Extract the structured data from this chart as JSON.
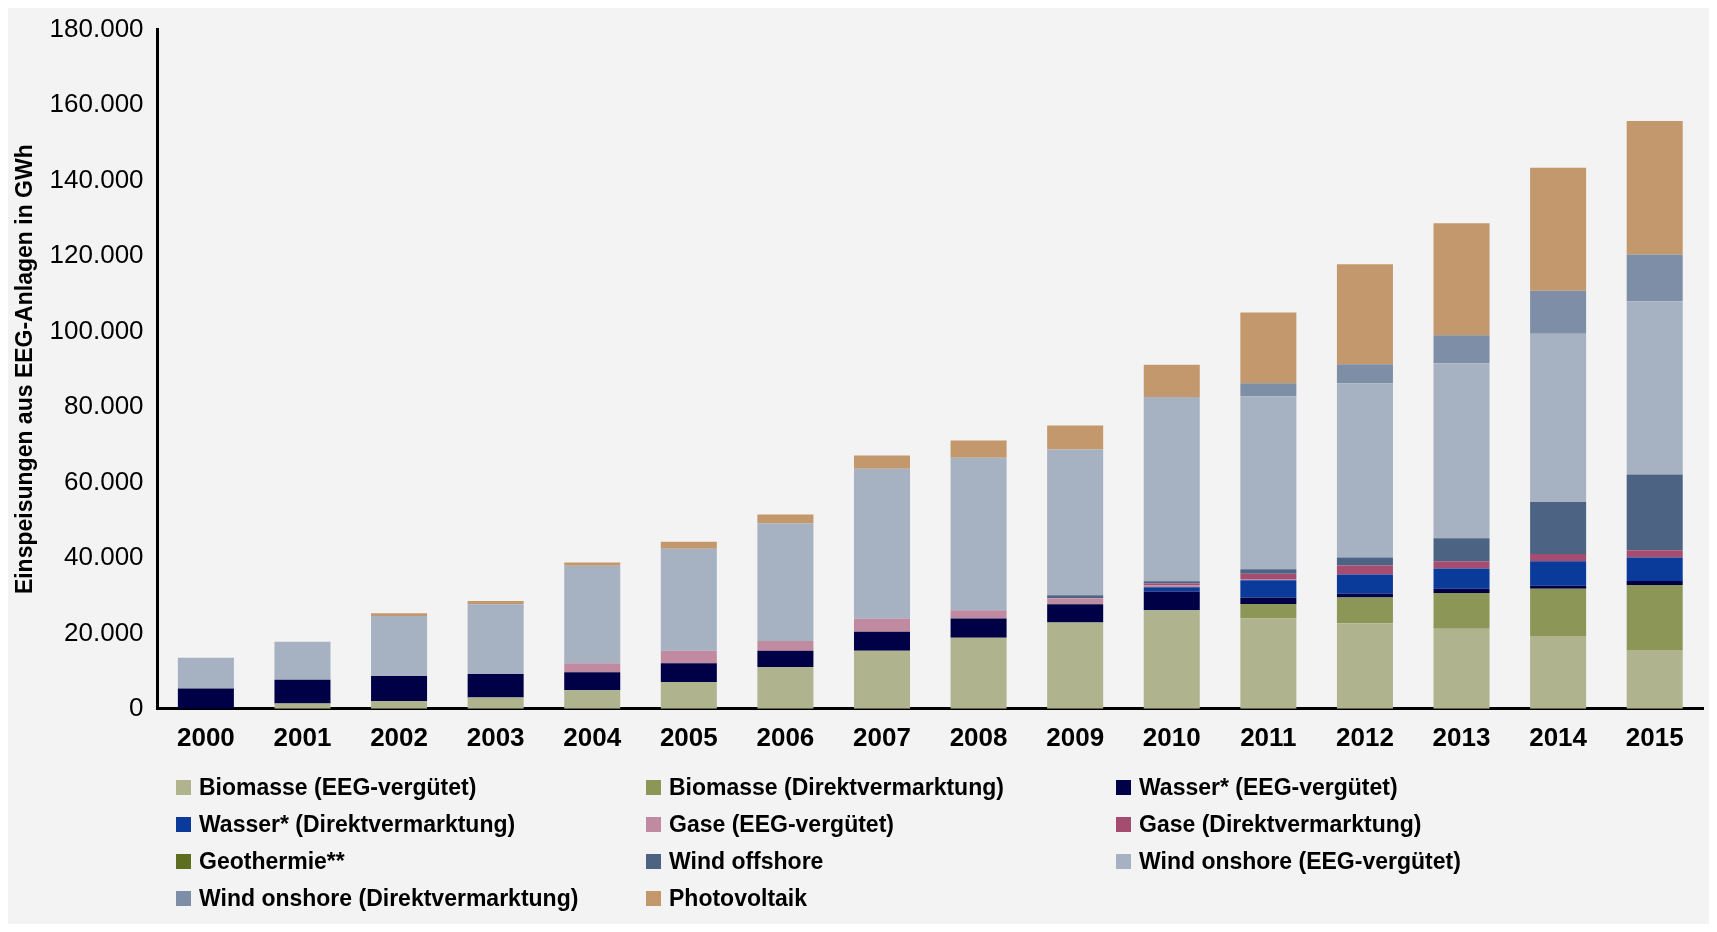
{
  "chart_data": {
    "type": "bar",
    "stacked": true,
    "ylabel": "Einspeisungen aus EEG-Anlagen in GWh",
    "categories": [
      "2000",
      "2001",
      "2002",
      "2003",
      "2004",
      "2005",
      "2006",
      "2007",
      "2008",
      "2009",
      "2010",
      "2011",
      "2012",
      "2013",
      "2014",
      "2015"
    ],
    "ylim": [
      0,
      180000
    ],
    "yticks": [
      {
        "value": 0,
        "label": "0"
      },
      {
        "value": 20000,
        "label": "20.000"
      },
      {
        "value": 40000,
        "label": "40.000"
      },
      {
        "value": 60000,
        "label": "60.000"
      },
      {
        "value": 80000,
        "label": "80.000"
      },
      {
        "value": 100000,
        "label": "100.000"
      },
      {
        "value": 120000,
        "label": "120.000"
      },
      {
        "value": 140000,
        "label": "140.000"
      },
      {
        "value": 160000,
        "label": "160.000"
      },
      {
        "value": 180000,
        "label": "180.000"
      }
    ],
    "grid": false,
    "legend": "bottom",
    "series": [
      {
        "name": "Biomasse (EEG-vergütet)",
        "color": "#afb38e",
        "values": [
          null,
          1400,
          2100,
          3000,
          4900,
          7100,
          11100,
          15400,
          18800,
          22900,
          26100,
          24000,
          22700,
          21200,
          19300,
          15600
        ]
      },
      {
        "name": "Biomasse (Direktvermarktung)",
        "color": "#8c9656",
        "values": [
          0,
          0,
          0,
          0,
          0,
          0,
          0,
          0,
          0,
          0,
          0,
          3800,
          6800,
          9500,
          12500,
          17200
        ]
      },
      {
        "name": "Wasser* (EEG-vergütet)",
        "color": "#000046",
        "values": [
          5400,
          6300,
          6600,
          6200,
          4800,
          5000,
          4300,
          5000,
          5100,
          4800,
          5000,
          1700,
          1000,
          1100,
          800,
          1100
        ]
      },
      {
        "name": "Wasser* (Direktvermarktung)",
        "color": "#0a3a9a",
        "values": [
          0,
          0,
          0,
          0,
          0,
          0,
          0,
          0,
          0,
          0,
          1100,
          4600,
          5100,
          5400,
          6500,
          6200
        ]
      },
      {
        "name": "Gase (EEG-vergütet)",
        "color": "#c08ba0",
        "values": [
          0,
          0,
          0,
          0,
          2400,
          3300,
          2600,
          3500,
          2200,
          1600,
          500,
          300,
          0,
          0,
          0,
          0
        ]
      },
      {
        "name": "Gase (Direktvermarktung)",
        "color": "#a44d70",
        "values": [
          0,
          0,
          0,
          0,
          0,
          0,
          0,
          0,
          0,
          0,
          500,
          1400,
          2400,
          1900,
          1900,
          1900
        ]
      },
      {
        "name": "Geothermie**",
        "color": "#5e6e1e",
        "values": [
          0,
          0,
          0,
          0,
          0,
          0,
          0,
          0,
          0,
          0,
          0,
          0,
          0,
          null,
          null,
          null
        ]
      },
      {
        "name": "Wind offshore",
        "color": "#4c6383",
        "values": [
          0,
          0,
          0,
          0,
          0,
          0,
          0,
          0,
          0,
          800,
          600,
          1200,
          2100,
          6100,
          13800,
          20100
        ]
      },
      {
        "name": "Wind onshore (EEG-vergütet)",
        "color": "#a6b1c1",
        "values": [
          8100,
          10100,
          15900,
          18500,
          25800,
          27000,
          31100,
          39700,
          40400,
          38600,
          48800,
          45800,
          46200,
          46400,
          44600,
          45900
        ]
      },
      {
        "name": "Wind onshore (Direktvermarktung)",
        "color": "#7d8ea6",
        "values": [
          0,
          0,
          0,
          0,
          0,
          0,
          0,
          0,
          0,
          0,
          0,
          3500,
          5000,
          7400,
          11400,
          12400
        ]
      },
      {
        "name": "Photovoltaik",
        "color": "#c2986c",
        "values": [
          0,
          0,
          700,
          900,
          900,
          1900,
          2400,
          3500,
          4600,
          6400,
          8600,
          18700,
          26500,
          29700,
          32600,
          35400
        ]
      }
    ]
  }
}
